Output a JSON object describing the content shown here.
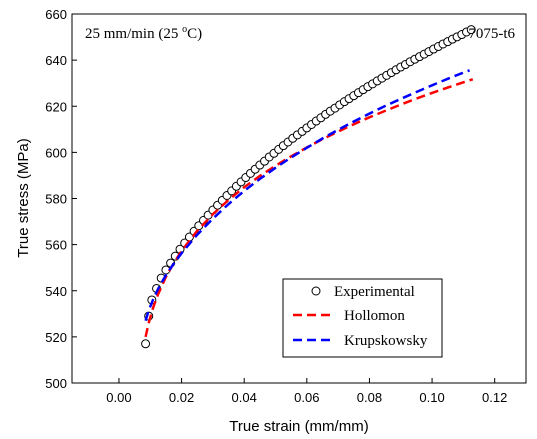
{
  "chart_data": {
    "type": "line",
    "title": "",
    "annotation_left_prefix": "25 mm/min (25 ",
    "annotation_left_degree": "o",
    "annotation_left_suffix": "C)",
    "annotation_right": "7075-t6",
    "xlabel": "True strain (mm/mm)",
    "ylabel": "True stress (MPa)",
    "xlim": [
      -0.015,
      0.13
    ],
    "ylim": [
      500,
      660
    ],
    "xticks": [
      0.0,
      0.02,
      0.04,
      0.06,
      0.08,
      0.1,
      0.12
    ],
    "xtick_labels": [
      "0.00",
      "0.02",
      "0.04",
      "0.06",
      "0.08",
      "0.10",
      "0.12"
    ],
    "yticks": [
      500,
      520,
      540,
      560,
      580,
      600,
      620,
      640,
      660
    ],
    "ytick_labels": [
      "500",
      "520",
      "540",
      "560",
      "580",
      "600",
      "620",
      "640",
      "660"
    ],
    "grid": false,
    "legend_position": "bottom-right",
    "series": [
      {
        "name": "Experimental",
        "style": "markers",
        "marker": "circle",
        "color": "#000000",
        "x": [
          0.0085,
          0.0095,
          0.0105,
          0.012,
          0.0135,
          0.015,
          0.0165,
          0.018,
          0.0195,
          0.021,
          0.0225,
          0.024,
          0.0255,
          0.027,
          0.0285,
          0.03,
          0.0315,
          0.033,
          0.0345,
          0.036,
          0.0375,
          0.039,
          0.0405,
          0.042,
          0.0435,
          0.045,
          0.0465,
          0.048,
          0.0495,
          0.051,
          0.0525,
          0.054,
          0.0555,
          0.057,
          0.0585,
          0.06,
          0.0615,
          0.063,
          0.0645,
          0.066,
          0.0675,
          0.069,
          0.0705,
          0.072,
          0.0735,
          0.075,
          0.0765,
          0.078,
          0.0795,
          0.081,
          0.0825,
          0.084,
          0.0855,
          0.087,
          0.0885,
          0.09,
          0.0915,
          0.093,
          0.0945,
          0.096,
          0.0975,
          0.099,
          0.1005,
          0.102,
          0.1035,
          0.105,
          0.1065,
          0.108,
          0.1095,
          0.111,
          0.1125
        ],
        "y": [
          517.0,
          529.0,
          536.0,
          541.0,
          545.5,
          549.0,
          552.0,
          555.0,
          558.0,
          560.7,
          563.3,
          565.8,
          568.2,
          570.5,
          572.8,
          575.0,
          577.1,
          579.2,
          581.3,
          583.3,
          585.3,
          587.2,
          589.1,
          590.9,
          592.7,
          594.5,
          596.2,
          598.0,
          599.6,
          601.3,
          602.9,
          604.5,
          606.1,
          607.6,
          609.1,
          610.6,
          612.1,
          613.6,
          615.0,
          616.5,
          617.9,
          619.2,
          620.6,
          622.0,
          623.3,
          624.6,
          625.9,
          627.2,
          628.5,
          629.7,
          631.0,
          632.2,
          633.4,
          634.6,
          635.8,
          637.0,
          638.1,
          639.3,
          640.4,
          641.5,
          642.6,
          643.7,
          644.8,
          645.9,
          647.0,
          648.0,
          649.1,
          650.1,
          651.1,
          652.2,
          653.2
        ]
      },
      {
        "name": "Hollomon",
        "style": "dashed",
        "color": "#ff0000",
        "x": [
          0.0085,
          0.0095,
          0.011,
          0.0125,
          0.015,
          0.0175,
          0.02,
          0.025,
          0.03,
          0.035,
          0.04,
          0.045,
          0.05,
          0.055,
          0.06,
          0.065,
          0.07,
          0.075,
          0.08,
          0.085,
          0.09,
          0.095,
          0.1,
          0.105,
          0.11,
          0.113
        ],
        "y": [
          520.0,
          526.0,
          533.0,
          538.5,
          546.0,
          552.0,
          557.3,
          566.0,
          573.2,
          579.4,
          584.9,
          589.8,
          594.2,
          598.3,
          602.1,
          605.7,
          609.0,
          612.2,
          615.2,
          618.0,
          620.7,
          623.3,
          625.8,
          628.1,
          630.4,
          631.7
        ]
      },
      {
        "name": "Krupskowsky",
        "style": "dashed",
        "color": "#0000ff",
        "x": [
          0.0085,
          0.0095,
          0.011,
          0.0125,
          0.015,
          0.0175,
          0.02,
          0.025,
          0.03,
          0.035,
          0.04,
          0.045,
          0.05,
          0.055,
          0.06,
          0.065,
          0.07,
          0.075,
          0.08,
          0.085,
          0.09,
          0.095,
          0.1,
          0.105,
          0.11,
          0.112
        ],
        "y": [
          527.0,
          531.5,
          536.5,
          540.8,
          546.8,
          551.8,
          556.3,
          564.3,
          571.3,
          577.6,
          583.3,
          588.5,
          593.3,
          597.8,
          602.0,
          606.0,
          609.8,
          613.4,
          616.8,
          620.1,
          623.2,
          626.2,
          629.1,
          631.9,
          634.6,
          635.6
        ]
      }
    ]
  }
}
